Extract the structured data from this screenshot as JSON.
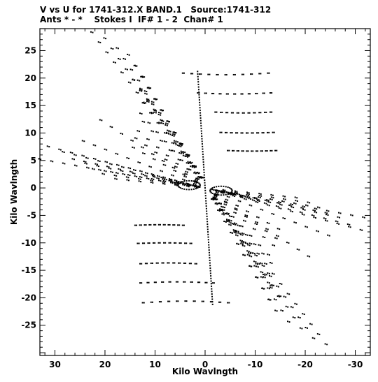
{
  "chart_data": {
    "type": "scatter",
    "title_line1": "V vs U for 1741-312.X BAND.1   Source:1741-312",
    "title_line2": "Ants * - *    Stokes I  IF# 1 - 2  Chan# 1",
    "xlabel": "Kilo Wavlngth",
    "ylabel": "Kilo Wavlngth",
    "xlim": [
      33,
      -33
    ],
    "ylim": [
      -30.5,
      29
    ],
    "x_ticks": [
      30,
      20,
      10,
      0,
      -10,
      -20,
      -30
    ],
    "x_tick_labels": [
      "30",
      "20",
      "10",
      "0",
      "-10",
      "-20",
      "-30"
    ],
    "y_ticks": [
      25,
      20,
      15,
      10,
      5,
      0,
      -5,
      -10,
      -15,
      -20,
      -25
    ],
    "y_tick_labels": [
      "25",
      "20",
      "15",
      "10",
      "5",
      "0",
      "-5",
      "-10",
      "-15",
      "-20",
      "-25"
    ],
    "x_reversed": true,
    "grid": false,
    "marker_color": "#000000",
    "tracks": [
      {
        "start": [
          22.8,
          28.4
        ],
        "end": [
          -24,
          -28.4
        ]
      },
      {
        "start": [
          20.2,
          27.3
        ],
        "end": [
          -21.5,
          -27.3
        ]
      },
      {
        "start": [
          17.7,
          25.5
        ],
        "end": [
          -19,
          -25.5
        ]
      },
      {
        "start": [
          15.5,
          24.3
        ],
        "end": [
          -16.5,
          -24.3
        ]
      },
      {
        "start": [
          14,
          22.3
        ],
        "end": [
          -14,
          -22.3
        ]
      },
      {
        "start": [
          12.5,
          20.3
        ],
        "end": [
          -12.6,
          -20.3
        ]
      },
      {
        "start": [
          14.5,
          19.7
        ],
        "end": [
          -14.5,
          -19.7
        ]
      },
      {
        "start": [
          13,
          18.1
        ],
        "end": [
          -13,
          -18.1
        ]
      },
      {
        "start": [
          12,
          17.2
        ],
        "end": [
          -12.5,
          -17.2
        ]
      },
      {
        "start": [
          12.5,
          15.5
        ],
        "end": [
          -12.5,
          -15.5
        ]
      },
      {
        "start": [
          13,
          13.6
        ],
        "end": [
          -13,
          -13.6
        ]
      },
      {
        "start": [
          12.5,
          12.1
        ],
        "end": [
          -12.5,
          -12.1
        ]
      },
      {
        "start": [
          13.5,
          10.4
        ],
        "end": [
          -13.5,
          -10.4
        ]
      },
      {
        "start": [
          14,
          9.1
        ],
        "end": [
          -14,
          -9.1
        ]
      },
      {
        "start": [
          14.5,
          7.4
        ],
        "end": [
          -14.5,
          -7.4
        ]
      },
      {
        "start": [
          21,
          12.4
        ],
        "end": [
          -20.5,
          -12.4
        ]
      },
      {
        "start": [
          24.5,
          8.6
        ],
        "end": [
          -24.5,
          -8.6
        ]
      },
      {
        "start": [
          31.5,
          7.6
        ],
        "end": [
          -31,
          -7.6
        ]
      },
      {
        "start": [
          28.5,
          6.6
        ],
        "end": [
          -28.5,
          -6.6
        ]
      },
      {
        "start": [
          26.5,
          5.3
        ],
        "end": [
          -26.5,
          -5.3
        ]
      },
      {
        "start": [
          24,
          4.5
        ],
        "end": [
          -24,
          -4.5
        ]
      },
      {
        "start": [
          22.5,
          3.5
        ],
        "end": [
          -22.5,
          -3.5
        ]
      },
      {
        "start": [
          20.5,
          2.6
        ],
        "end": [
          -20.5,
          -2.6
        ]
      },
      {
        "start": [
          18,
          1.7
        ],
        "end": [
          -18,
          -1.7
        ]
      },
      {
        "start": [
          33.2,
          5.3
        ],
        "end": [
          -31.5,
          -5.3
        ]
      },
      {
        "start": [
          10.5,
          2.3
        ],
        "end": [
          -10.5,
          -2.3
        ]
      },
      {
        "start": [
          8.5,
          1.6
        ],
        "end": [
          -8.5,
          -1.6
        ]
      },
      {
        "start": [
          6.5,
          1.1
        ],
        "end": [
          -6.5,
          -1.1
        ]
      }
    ],
    "horizontal_arcs": [
      {
        "x_from": 4.5,
        "x_to": -12.5,
        "y": 20.9,
        "sag": 0.3
      },
      {
        "x_from": 1.5,
        "x_to": -13,
        "y": 17.3,
        "sag": 0.2
      },
      {
        "x_from": -2,
        "x_to": -13,
        "y": 13.8,
        "sag": 0.15
      },
      {
        "x_from": -3,
        "x_to": -13.5,
        "y": 10.1,
        "sag": 0.1
      },
      {
        "x_from": -4.5,
        "x_to": -14,
        "y": 6.8,
        "sag": 0.1
      },
      {
        "x_from": -4.5,
        "x_to": 12.5,
        "y": -20.9,
        "sag": -0.3
      },
      {
        "x_from": -1.5,
        "x_to": 13,
        "y": -17.3,
        "sag": -0.2
      },
      {
        "x_from": 2,
        "x_to": 13,
        "y": -13.8,
        "sag": -0.15
      },
      {
        "x_from": 3,
        "x_to": 13.5,
        "y": -10.1,
        "sag": -0.1
      },
      {
        "x_from": 4.5,
        "x_to": 14,
        "y": -6.8,
        "sag": -0.1
      }
    ],
    "central_track": {
      "start": [
        1.5,
        21.2
      ],
      "end": [
        -1.5,
        -21.2
      ]
    },
    "inner_loops": [
      {
        "cx": 3.2,
        "cy": 0.5,
        "rx": 2.2,
        "ry": 0.8
      },
      {
        "cx": -3.2,
        "cy": -0.5,
        "rx": 2.2,
        "ry": 0.8
      }
    ]
  }
}
